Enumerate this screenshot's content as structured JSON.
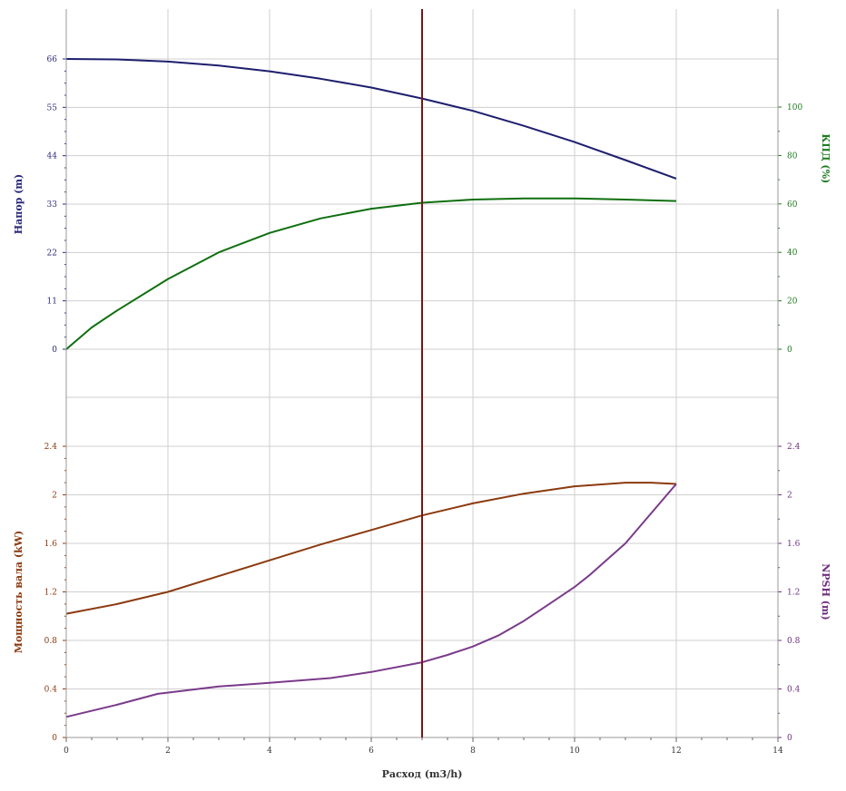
{
  "chart_data": {
    "type": "line",
    "x_axis": {
      "label": "Расход (m3/h)",
      "range": [
        0,
        14
      ],
      "ticks": [
        0,
        2,
        4,
        6,
        8,
        10,
        12,
        14
      ]
    },
    "operating_point_x": 7,
    "panels": [
      {
        "name": "top",
        "left_axis": {
          "label": "Напор (m)",
          "range": [
            0,
            66
          ],
          "ticks": [
            0,
            11,
            22,
            33,
            44,
            55,
            66
          ],
          "color": "#28287a"
        },
        "right_axis": {
          "label": "КПД (%)",
          "range": [
            0,
            120
          ],
          "ticks": [
            0,
            20,
            40,
            60,
            80,
            100
          ],
          "color": "#1f7a1f"
        },
        "series": [
          {
            "axis": "left",
            "color": "#1e1e6e",
            "x": [
              0,
              1,
              2,
              3,
              4,
              5,
              6,
              7,
              8,
              9,
              10,
              11,
              12
            ],
            "y": [
              66,
              65.9,
              65.4,
              64.5,
              63.2,
              61.5,
              59.5,
              57,
              54.2,
              50.8,
              47.1,
              43,
              38.8
            ]
          },
          {
            "axis": "right",
            "color": "#0f6f0f",
            "x": [
              0,
              0.5,
              1,
              2,
              3,
              4,
              5,
              6,
              7,
              8,
              9,
              10,
              11,
              12
            ],
            "y": [
              0,
              9,
              16,
              29,
              40,
              48,
              54,
              58,
              60.5,
              61.8,
              62.3,
              62.3,
              61.8,
              61.2
            ]
          }
        ]
      },
      {
        "name": "bottom",
        "left_axis": {
          "label": "Мощность вала (kW)",
          "range": [
            0,
            2.4
          ],
          "ticks": [
            0,
            0.4,
            0.8,
            1.2,
            1.6,
            2,
            2.4
          ],
          "tick_labels": [
            "0",
            "0.4",
            "0.8",
            "1.2",
            "1.6",
            "2",
            "2.4"
          ],
          "color": "#8b3a0f"
        },
        "right_axis": {
          "label": "NPSH (m)",
          "range": [
            0,
            2.4
          ],
          "ticks": [
            0,
            0.4,
            0.8,
            1.2,
            1.6,
            2,
            2.4
          ],
          "tick_labels": [
            "0",
            "0.4",
            "0.8",
            "1.2",
            "1.6",
            "2",
            "2.4"
          ],
          "color": "#6f2f7f"
        },
        "series": [
          {
            "axis": "left",
            "color": "#8b3a0f",
            "x": [
              0,
              1,
              2,
              3,
              4,
              5,
              6,
              7,
              8,
              9,
              10,
              11,
              11.5,
              12
            ],
            "y": [
              1.02,
              1.1,
              1.2,
              1.33,
              1.46,
              1.59,
              1.71,
              1.83,
              1.93,
              2.01,
              2.07,
              2.1,
              2.1,
              2.09
            ]
          },
          {
            "axis": "right",
            "color": "#7a3a8a",
            "x": [
              0,
              1,
              1.8,
              3,
              4,
              5.2,
              6,
              7,
              7.5,
              8,
              8.5,
              9,
              9.5,
              10,
              10.3,
              11,
              12
            ],
            "y": [
              0.17,
              0.27,
              0.36,
              0.42,
              0.45,
              0.49,
              0.54,
              0.62,
              0.68,
              0.75,
              0.84,
              0.96,
              1.1,
              1.24,
              1.34,
              1.6,
              2.09
            ]
          }
        ]
      }
    ],
    "grid": true,
    "colors": {
      "grid": "#cfcfcf",
      "axis": "#9a9a9a",
      "operating_line": "#7a1414"
    }
  }
}
